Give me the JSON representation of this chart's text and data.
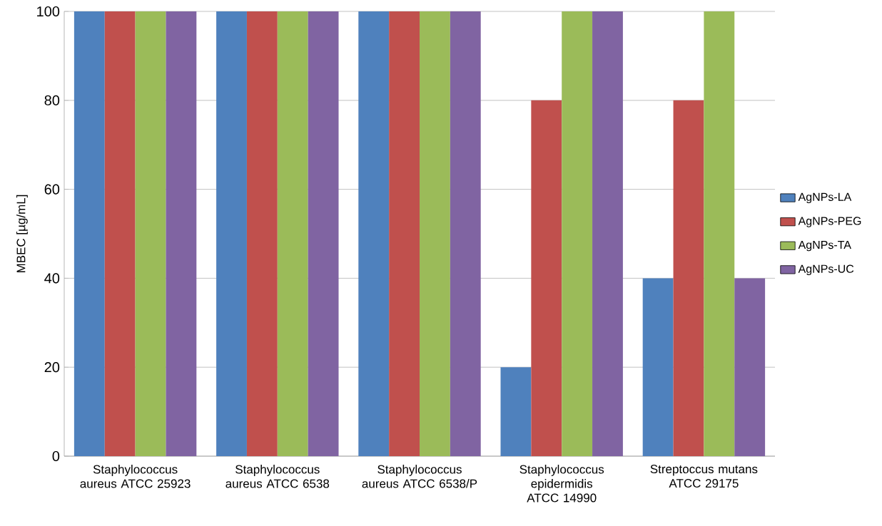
{
  "chart_data": {
    "type": "bar",
    "ylabel": "MBEC  [µg/mL]",
    "categories": [
      "Staphylococcus aureus ATCC 25923",
      "Staphylococcus aureus ATCC 6538",
      "Staphylococcus aureus ATCC 6538/P",
      "Staphylococcus epidermidis ATCC 14990",
      "Streptoccus mutans ATCC 29175"
    ],
    "series": [
      {
        "name": "AgNPs-LA",
        "color": "#4f81bd",
        "values": [
          100,
          100,
          100,
          20,
          40
        ]
      },
      {
        "name": "AgNPs-PEG",
        "color": "#c0504d",
        "values": [
          100,
          100,
          100,
          80,
          80
        ]
      },
      {
        "name": "AgNPs-TA",
        "color": "#9bbb59",
        "values": [
          100,
          100,
          100,
          100,
          100
        ]
      },
      {
        "name": "AgNPs-UC",
        "color": "#8064a2",
        "values": [
          100,
          100,
          100,
          100,
          40
        ]
      }
    ],
    "ylim": [
      0,
      100
    ],
    "yticks": [
      0,
      20,
      40,
      60,
      80,
      100
    ],
    "grid": "y",
    "legend": "right"
  }
}
